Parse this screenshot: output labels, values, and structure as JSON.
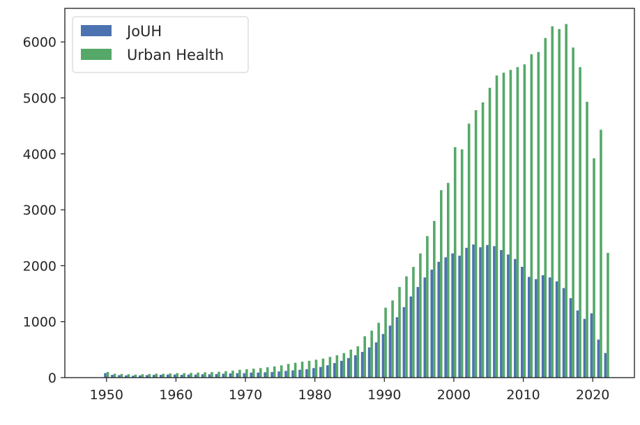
{
  "chart_data": {
    "type": "bar",
    "title": "",
    "xlabel": "",
    "ylabel": "",
    "xlim": [
      1944,
      2026
    ],
    "ylim": [
      0,
      6600
    ],
    "x": [
      1950,
      1951,
      1952,
      1953,
      1954,
      1955,
      1956,
      1957,
      1958,
      1959,
      1960,
      1961,
      1962,
      1963,
      1964,
      1965,
      1966,
      1967,
      1968,
      1969,
      1970,
      1971,
      1972,
      1973,
      1974,
      1975,
      1976,
      1977,
      1978,
      1979,
      1980,
      1981,
      1982,
      1983,
      1984,
      1985,
      1986,
      1987,
      1988,
      1989,
      1990,
      1991,
      1992,
      1993,
      1994,
      1995,
      1996,
      1997,
      1998,
      1999,
      2000,
      2001,
      2002,
      2003,
      2004,
      2005,
      2006,
      2007,
      2008,
      2009,
      2010,
      2011,
      2012,
      2013,
      2014,
      2015,
      2016,
      2017,
      2018,
      2019,
      2020,
      2021,
      2022
    ],
    "x_ticks": [
      "1950",
      "1960",
      "1970",
      "1980",
      "1990",
      "2000",
      "2010",
      "2020"
    ],
    "x_tick_values": [
      1950,
      1960,
      1970,
      1980,
      1990,
      2000,
      2010,
      2020
    ],
    "y_ticks": [
      "0",
      "1000",
      "2000",
      "3000",
      "4000",
      "5000",
      "6000"
    ],
    "y_tick_values": [
      0,
      1000,
      2000,
      3000,
      4000,
      5000,
      6000
    ],
    "legend_position": "upper-left",
    "grid": false,
    "series": [
      {
        "name": "JoUH",
        "color": "#4c72b0",
        "values": [
          80,
          50,
          45,
          40,
          35,
          40,
          45,
          50,
          50,
          55,
          55,
          50,
          55,
          55,
          60,
          60,
          65,
          70,
          75,
          80,
          80,
          90,
          90,
          95,
          100,
          110,
          120,
          130,
          140,
          150,
          170,
          190,
          220,
          260,
          300,
          350,
          400,
          460,
          540,
          630,
          780,
          930,
          1080,
          1260,
          1450,
          1620,
          1790,
          1930,
          2070,
          2150,
          2220,
          2180,
          2320,
          2380,
          2330,
          2370,
          2350,
          2280,
          2200,
          2120,
          1980,
          1800,
          1760,
          1830,
          1790,
          1720,
          1600,
          1420,
          1200,
          1050,
          1150,
          680,
          440
        ]
      },
      {
        "name": "Urban Health",
        "color": "#55a868",
        "values": [
          100,
          70,
          65,
          60,
          55,
          60,
          65,
          70,
          70,
          75,
          80,
          80,
          85,
          90,
          95,
          100,
          105,
          115,
          125,
          140,
          150,
          160,
          170,
          185,
          200,
          220,
          245,
          265,
          285,
          300,
          320,
          340,
          370,
          400,
          440,
          500,
          560,
          740,
          840,
          980,
          1250,
          1380,
          1620,
          1810,
          1980,
          2220,
          2530,
          2800,
          3350,
          3480,
          4120,
          4080,
          4540,
          4780,
          4920,
          5180,
          5400,
          5450,
          5500,
          5550,
          5600,
          5780,
          5820,
          6070,
          6280,
          6230,
          6320,
          5900,
          5550,
          4930,
          3920,
          4430,
          2230
        ]
      }
    ]
  }
}
